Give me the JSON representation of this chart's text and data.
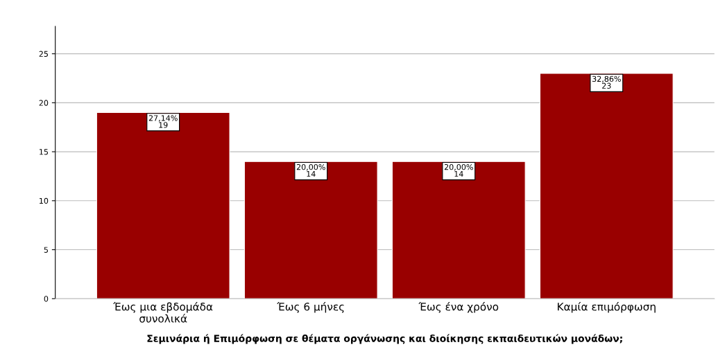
{
  "chart_data": {
    "type": "bar",
    "xlabel": "Σεμινάρια ή Επιμόρφωση σε θέματα οργάνωσης και διοίκησης εκπαιδευτικών μονάδων;",
    "categories": [
      "Έως μια εβδομάδα\nσυνολικά",
      "Έως 6 μήνες",
      "Έως ένα χρόνο",
      "Καμία επιμόρφωση"
    ],
    "values": [
      19,
      14,
      14,
      23
    ],
    "value_labels": [
      "27,14%\n19",
      "20,00%\n14",
      "20,00%\n14",
      "32,86%\n23"
    ],
    "color": "#990000",
    "ylim": [
      0,
      27.8
    ],
    "yticks": [
      0,
      5,
      10,
      15,
      20,
      25
    ],
    "grid": "y",
    "legend": false
  }
}
